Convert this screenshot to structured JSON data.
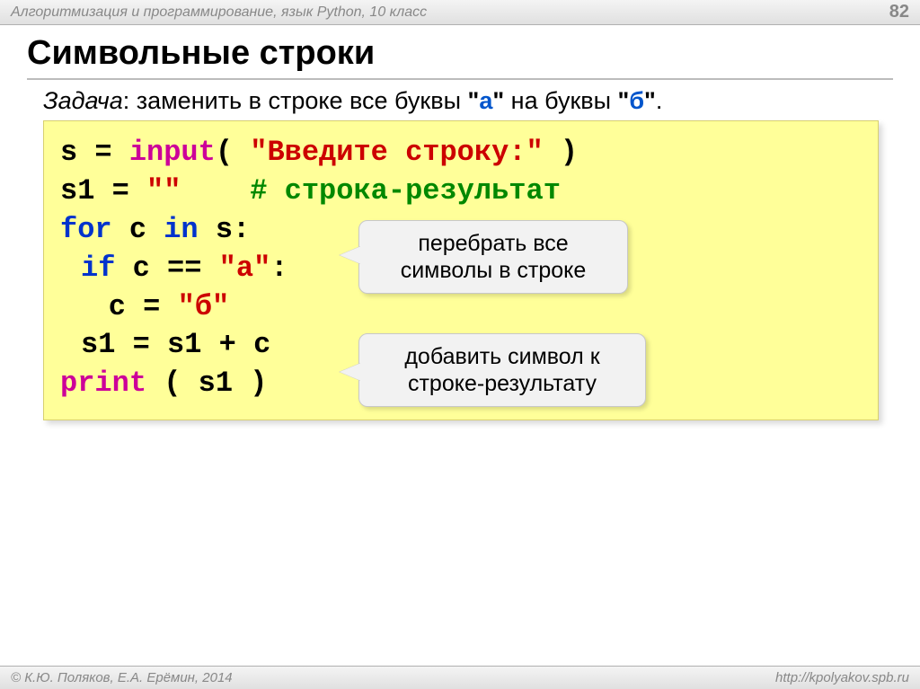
{
  "header": {
    "course": "Алгоритмизация и программирование, язык Python, 10 класс",
    "page_number": "82"
  },
  "title": "Символьные строки",
  "task": {
    "label": "Задача",
    "text_before": ": заменить в строке все буквы ",
    "quote_a": "\"а\"",
    "text_mid": " на буквы ",
    "quote_b": "\"б\"",
    "text_after": "."
  },
  "code": {
    "l1_var": "s",
    "l1_eq": " = ",
    "l1_fn": "input",
    "l1_open": "( ",
    "l1_str": "\"Введите строку:\"",
    "l1_close": " )",
    "l2_var": "s1",
    "l2_eq": " = ",
    "l2_str": "\"\"",
    "l2_pad": "    ",
    "l2_com": "# строка-результат",
    "l3_for": "for",
    "l3_sp1": " ",
    "l3_c": "c",
    "l3_sp2": " ",
    "l3_in": "in",
    "l3_sp3": " ",
    "l3_s": "s:",
    "l4_if": "if",
    "l4_sp": " c == ",
    "l4_str": "\"а\"",
    "l4_colon": ":",
    "l5_c": "c",
    "l5_eq": " = ",
    "l5_str": "\"б\"",
    "l6": "s1 = s1 + c",
    "l7_fn": "print",
    "l7_args": " ( s1 )"
  },
  "callouts": {
    "c1": "перебрать все символы в строке",
    "c2": "добавить символ к строке-результату"
  },
  "footer": {
    "authors": "© К.Ю. Поляков, Е.А. Ерёмин, 2014",
    "url": "http://kpolyakov.spb.ru"
  },
  "colors": {
    "keyword": "#0033cc",
    "function": "#cc0099",
    "string": "#cc0000",
    "comment": "#008800",
    "code_bg": "#ffff99",
    "callout_bg": "#f2f2f2",
    "task_quote": "#0055cc"
  }
}
